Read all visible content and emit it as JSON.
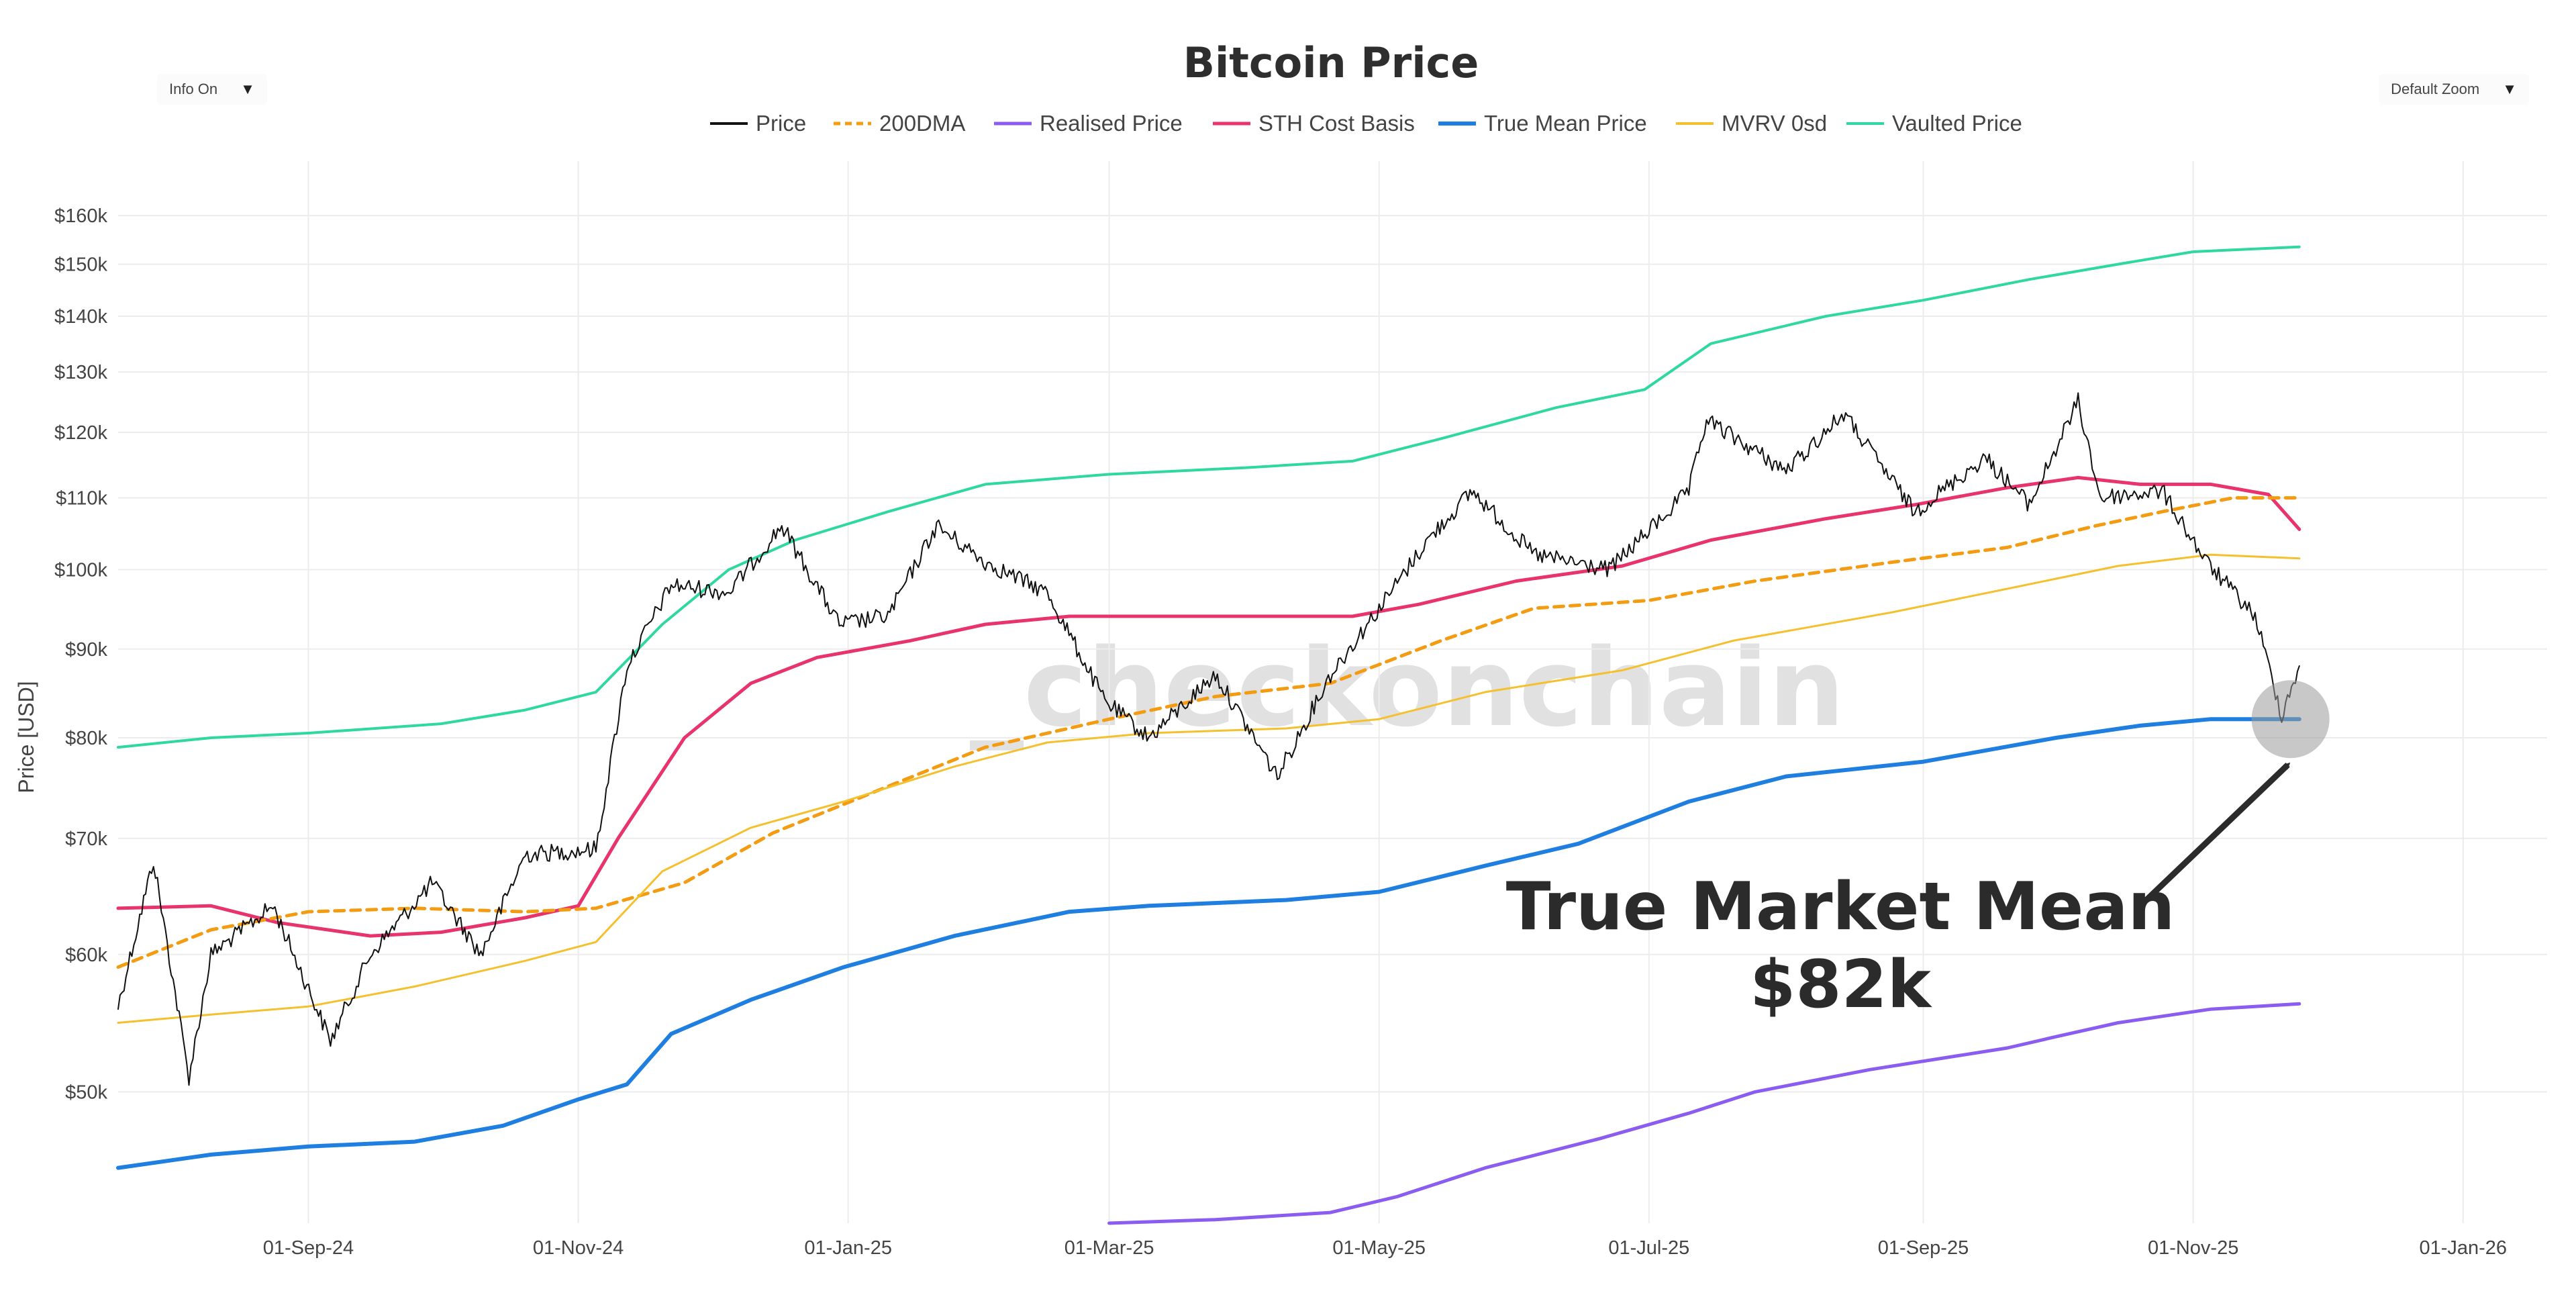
{
  "controls": {
    "info_toggle": "Info On",
    "zoom_select": "Default Zoom",
    "dropdown_arrow": "▼"
  },
  "chart_data": {
    "type": "line",
    "title": "Bitcoin Price",
    "ylabel": "Price [USD]",
    "xlabel": "",
    "yscale": "log",
    "ylim": [
      42000,
      172000
    ],
    "xlim": [
      "2024-07-20",
      "2026-01-20"
    ],
    "yticks": [
      {
        "value": 50000,
        "label": "$50k"
      },
      {
        "value": 60000,
        "label": "$60k"
      },
      {
        "value": 70000,
        "label": "$70k"
      },
      {
        "value": 80000,
        "label": "$80k"
      },
      {
        "value": 90000,
        "label": "$90k"
      },
      {
        "value": 100000,
        "label": "$100k"
      },
      {
        "value": 110000,
        "label": "$110k"
      },
      {
        "value": 120000,
        "label": "$120k"
      },
      {
        "value": 130000,
        "label": "$130k"
      },
      {
        "value": 140000,
        "label": "$140k"
      },
      {
        "value": 150000,
        "label": "$150k"
      },
      {
        "value": 160000,
        "label": "$160k"
      }
    ],
    "xticks": [
      {
        "date": "2024-09-01",
        "label": "01-Sep-24"
      },
      {
        "date": "2024-11-01",
        "label": "01-Nov-24"
      },
      {
        "date": "2025-01-01",
        "label": "01-Jan-25"
      },
      {
        "date": "2025-03-01",
        "label": "01-Mar-25"
      },
      {
        "date": "2025-05-01",
        "label": "01-May-25"
      },
      {
        "date": "2025-07-01",
        "label": "01-Jul-25"
      },
      {
        "date": "2025-09-01",
        "label": "01-Sep-25"
      },
      {
        "date": "2025-11-01",
        "label": "01-Nov-25"
      },
      {
        "date": "2026-01-01",
        "label": "01-Jan-26"
      }
    ],
    "grid": true,
    "legend_position": "top-center",
    "series": [
      {
        "name": "Vaulted Price",
        "color": "#2ed8a0",
        "width": 4,
        "dash": "",
        "points": [
          [
            "2024-07-20",
            79000
          ],
          [
            "2024-08-10",
            80000
          ],
          [
            "2024-09-01",
            80500
          ],
          [
            "2024-10-01",
            81500
          ],
          [
            "2024-10-20",
            83000
          ],
          [
            "2024-11-05",
            85000
          ],
          [
            "2024-11-20",
            93000
          ],
          [
            "2024-12-05",
            100000
          ],
          [
            "2024-12-20",
            104000
          ],
          [
            "2025-01-10",
            108000
          ],
          [
            "2025-02-01",
            112000
          ],
          [
            "2025-03-01",
            113500
          ],
          [
            "2025-04-01",
            114500
          ],
          [
            "2025-04-25",
            115500
          ],
          [
            "2025-05-15",
            119000
          ],
          [
            "2025-06-10",
            124000
          ],
          [
            "2025-06-30",
            127000
          ],
          [
            "2025-07-15",
            135000
          ],
          [
            "2025-08-10",
            140000
          ],
          [
            "2025-09-01",
            143000
          ],
          [
            "2025-09-25",
            147000
          ],
          [
            "2025-10-15",
            150000
          ],
          [
            "2025-11-01",
            152500
          ],
          [
            "2025-11-25",
            153500
          ]
        ]
      },
      {
        "name": "STH Cost Basis",
        "color": "#e8336d",
        "width": 5,
        "dash": "",
        "points": [
          [
            "2024-07-20",
            63800
          ],
          [
            "2024-08-10",
            64000
          ],
          [
            "2024-08-25",
            62600
          ],
          [
            "2024-09-15",
            61500
          ],
          [
            "2024-10-01",
            61800
          ],
          [
            "2024-10-20",
            63000
          ],
          [
            "2024-11-01",
            64000
          ],
          [
            "2024-11-10",
            70000
          ],
          [
            "2024-11-25",
            80000
          ],
          [
            "2024-12-10",
            86000
          ],
          [
            "2024-12-25",
            89000
          ],
          [
            "2025-01-15",
            91000
          ],
          [
            "2025-02-01",
            93000
          ],
          [
            "2025-02-20",
            94000
          ],
          [
            "2025-03-15",
            94000
          ],
          [
            "2025-04-05",
            94000
          ],
          [
            "2025-04-25",
            94000
          ],
          [
            "2025-05-10",
            95500
          ],
          [
            "2025-06-01",
            98500
          ],
          [
            "2025-06-25",
            100500
          ],
          [
            "2025-07-15",
            104000
          ],
          [
            "2025-08-10",
            107000
          ],
          [
            "2025-08-30",
            109000
          ],
          [
            "2025-09-20",
            111500
          ],
          [
            "2025-10-06",
            113000
          ],
          [
            "2025-10-20",
            112000
          ],
          [
            "2025-11-05",
            112000
          ],
          [
            "2025-11-18",
            110500
          ],
          [
            "2025-11-25",
            105500
          ]
        ]
      },
      {
        "name": "200DMA",
        "color": "#f39c12",
        "width": 5,
        "dash": "14 10",
        "points": [
          [
            "2024-07-20",
            59000
          ],
          [
            "2024-08-10",
            62000
          ],
          [
            "2024-09-01",
            63500
          ],
          [
            "2024-09-25",
            63800
          ],
          [
            "2024-10-20",
            63500
          ],
          [
            "2024-11-05",
            63800
          ],
          [
            "2024-11-25",
            66000
          ],
          [
            "2024-12-15",
            70500
          ],
          [
            "2025-01-10",
            75000
          ],
          [
            "2025-02-01",
            79000
          ],
          [
            "2025-03-01",
            82000
          ],
          [
            "2025-03-25",
            84500
          ],
          [
            "2025-04-20",
            86000
          ],
          [
            "2025-05-15",
            91000
          ],
          [
            "2025-06-05",
            95000
          ],
          [
            "2025-07-01",
            96000
          ],
          [
            "2025-07-25",
            98500
          ],
          [
            "2025-08-25",
            101000
          ],
          [
            "2025-09-20",
            103000
          ],
          [
            "2025-10-10",
            106000
          ],
          [
            "2025-10-25",
            108000
          ],
          [
            "2025-11-10",
            110000
          ],
          [
            "2025-11-25",
            110000
          ]
        ]
      },
      {
        "name": "MVRV 0sd",
        "color": "#f5c02e",
        "width": 3,
        "dash": "",
        "points": [
          [
            "2024-07-20",
            54800
          ],
          [
            "2024-08-10",
            55400
          ],
          [
            "2024-09-01",
            56000
          ],
          [
            "2024-09-25",
            57500
          ],
          [
            "2024-10-20",
            59500
          ],
          [
            "2024-11-05",
            61000
          ],
          [
            "2024-11-20",
            67000
          ],
          [
            "2024-12-10",
            71000
          ],
          [
            "2024-12-31",
            73500
          ],
          [
            "2025-01-25",
            77000
          ],
          [
            "2025-02-15",
            79500
          ],
          [
            "2025-03-10",
            80500
          ],
          [
            "2025-04-10",
            81000
          ],
          [
            "2025-05-01",
            82000
          ],
          [
            "2025-05-25",
            85000
          ],
          [
            "2025-06-25",
            87500
          ],
          [
            "2025-07-20",
            91000
          ],
          [
            "2025-08-25",
            94500
          ],
          [
            "2025-09-20",
            97500
          ],
          [
            "2025-10-15",
            100500
          ],
          [
            "2025-11-05",
            102000
          ],
          [
            "2025-11-25",
            101500
          ]
        ]
      },
      {
        "name": "True Mean Price",
        "color": "#1e7fe0",
        "width": 6,
        "dash": "",
        "points": [
          [
            "2024-07-20",
            45200
          ],
          [
            "2024-08-10",
            46000
          ],
          [
            "2024-09-01",
            46500
          ],
          [
            "2024-09-25",
            46800
          ],
          [
            "2024-10-15",
            47800
          ],
          [
            "2024-11-01",
            49500
          ],
          [
            "2024-11-12",
            50500
          ],
          [
            "2024-11-22",
            54000
          ],
          [
            "2024-12-10",
            56500
          ],
          [
            "2024-12-31",
            59000
          ],
          [
            "2025-01-25",
            61500
          ],
          [
            "2025-02-20",
            63500
          ],
          [
            "2025-03-10",
            64000
          ],
          [
            "2025-04-10",
            64500
          ],
          [
            "2025-05-01",
            65200
          ],
          [
            "2025-05-25",
            67500
          ],
          [
            "2025-06-15",
            69500
          ],
          [
            "2025-07-10",
            73500
          ],
          [
            "2025-08-01",
            76000
          ],
          [
            "2025-09-01",
            77500
          ],
          [
            "2025-10-01",
            80000
          ],
          [
            "2025-10-20",
            81300
          ],
          [
            "2025-11-05",
            82000
          ],
          [
            "2025-11-25",
            82000
          ]
        ]
      },
      {
        "name": "Realised Price",
        "color": "#8a5cf0",
        "width": 5,
        "dash": "",
        "points": [
          [
            "2025-03-01",
            42000
          ],
          [
            "2025-03-25",
            42200
          ],
          [
            "2025-04-20",
            42600
          ],
          [
            "2025-05-05",
            43500
          ],
          [
            "2025-05-25",
            45200
          ],
          [
            "2025-06-20",
            47000
          ],
          [
            "2025-07-10",
            48600
          ],
          [
            "2025-07-25",
            50000
          ],
          [
            "2025-08-20",
            51500
          ],
          [
            "2025-09-20",
            53000
          ],
          [
            "2025-10-01",
            53800
          ],
          [
            "2025-10-15",
            54800
          ],
          [
            "2025-11-05",
            55800
          ],
          [
            "2025-11-25",
            56200
          ]
        ]
      },
      {
        "name": "Price",
        "color": "#111111",
        "width": 2,
        "dash": "",
        "noise": true,
        "points": [
          [
            "2024-07-20",
            56000
          ],
          [
            "2024-07-28",
            68000
          ],
          [
            "2024-08-05",
            51000
          ],
          [
            "2024-08-10",
            60000
          ],
          [
            "2024-08-24",
            64000
          ],
          [
            "2024-09-06",
            53500
          ],
          [
            "2024-09-15",
            60000
          ],
          [
            "2024-09-29",
            66000
          ],
          [
            "2024-10-10",
            60000
          ],
          [
            "2024-10-20",
            68500
          ],
          [
            "2024-11-05",
            69000
          ],
          [
            "2024-11-12",
            88000
          ],
          [
            "2024-11-22",
            98000
          ],
          [
            "2024-12-05",
            97000
          ],
          [
            "2024-12-17",
            106000
          ],
          [
            "2024-12-30",
            93000
          ],
          [
            "2025-01-10",
            94000
          ],
          [
            "2025-01-21",
            106000
          ],
          [
            "2025-02-01",
            101000
          ],
          [
            "2025-02-15",
            97000
          ],
          [
            "2025-02-28",
            84000
          ],
          [
            "2025-03-10",
            80000
          ],
          [
            "2025-03-25",
            87000
          ],
          [
            "2025-04-08",
            76000
          ],
          [
            "2025-04-20",
            87000
          ],
          [
            "2025-05-01",
            95000
          ],
          [
            "2025-05-12",
            104000
          ],
          [
            "2025-05-22",
            111000
          ],
          [
            "2025-06-05",
            102000
          ],
          [
            "2025-06-22",
            100000
          ],
          [
            "2025-07-10",
            111000
          ],
          [
            "2025-07-14",
            122000
          ],
          [
            "2025-08-01",
            114000
          ],
          [
            "2025-08-14",
            123000
          ],
          [
            "2025-08-30",
            108000
          ],
          [
            "2025-09-15",
            116000
          ],
          [
            "2025-09-25",
            109000
          ],
          [
            "2025-10-06",
            125000
          ],
          [
            "2025-10-11",
            110000
          ],
          [
            "2025-10-25",
            111000
          ],
          [
            "2025-11-04",
            101000
          ],
          [
            "2025-11-15",
            94000
          ],
          [
            "2025-11-21",
            82500
          ],
          [
            "2025-11-25",
            88000
          ]
        ]
      }
    ],
    "annotations": [
      {
        "line1": "True Market Mean",
        "line2": "$82k",
        "target_date": "2025-11-23",
        "target_value": 82000
      }
    ],
    "watermark": "_checkonchain"
  }
}
